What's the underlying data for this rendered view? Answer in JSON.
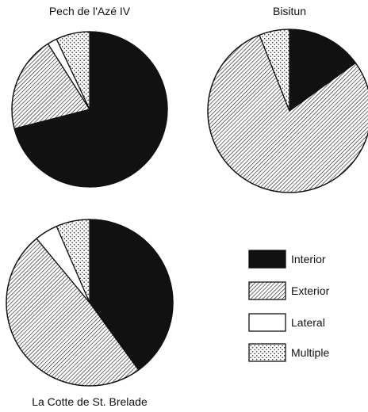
{
  "chart_data": [
    {
      "type": "pie",
      "title": "Pech de l'Azé IV",
      "categories": [
        "Interior",
        "Exterior",
        "Lateral",
        "Multiple"
      ],
      "values": [
        71,
        20,
        2,
        7
      ],
      "start_angle_deg": 0,
      "direction": "clockwise"
    },
    {
      "type": "pie",
      "title": "Bisitun",
      "categories": [
        "Interior",
        "Exterior",
        "Lateral",
        "Multiple"
      ],
      "values": [
        15,
        79,
        0,
        6
      ],
      "start_angle_deg": 0,
      "direction": "clockwise"
    },
    {
      "type": "pie",
      "title": "La Cotte de St. Brelade",
      "categories": [
        "Interior",
        "Exterior",
        "Lateral",
        "Multiple"
      ],
      "values": [
        40,
        49,
        4.5,
        6.5
      ],
      "start_angle_deg": 0,
      "direction": "clockwise"
    }
  ],
  "legend": {
    "placement": "bottom-right",
    "items": [
      {
        "label": "Interior",
        "pattern": "solid-black"
      },
      {
        "label": "Exterior",
        "pattern": "diagonal-hatch"
      },
      {
        "label": "Lateral",
        "pattern": "white"
      },
      {
        "label": "Multiple",
        "pattern": "dots"
      }
    ]
  },
  "colors": {
    "interior": "#111111",
    "outline": "#111111",
    "background": "#ffffff"
  }
}
